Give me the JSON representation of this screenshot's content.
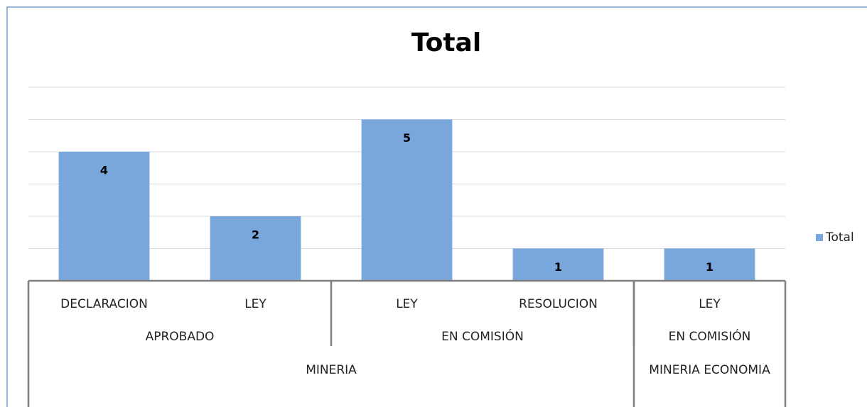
{
  "chart_data": {
    "type": "bar",
    "title": "Total",
    "categories": [
      "DECLARACION",
      "LEY",
      "LEY",
      "RESOLUCION",
      "LEY"
    ],
    "category_groups": [
      [
        "APROBADO",
        "APROBADO",
        "EN COMISIÓN",
        "EN COMISIÓN",
        "EN COMISIÓN"
      ],
      [
        "MINERIA",
        "MINERIA",
        "MINERIA",
        "MINERIA",
        "MINERIA ECONOMIA"
      ]
    ],
    "series": [
      {
        "name": "Total",
        "color": "#7aa7db",
        "values": [
          4,
          2,
          5,
          1,
          1
        ]
      }
    ],
    "ylim": [
      0,
      6
    ],
    "yticks": [
      0,
      1,
      2,
      3,
      4,
      5,
      6
    ],
    "grid": true,
    "legend": "right"
  }
}
